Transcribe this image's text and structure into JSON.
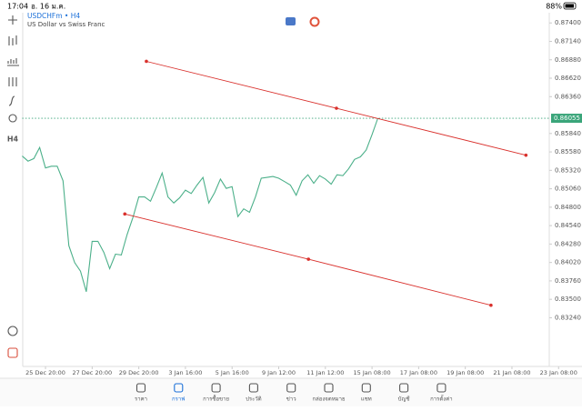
{
  "status_bar": {
    "time": "17:04",
    "date": "อ. 16 ม.ค.",
    "battery": "88%"
  },
  "symbol": {
    "name": "USDCHFm • H4",
    "description": "US Dollar vs Swiss Franc"
  },
  "toolbar": {
    "timeframe": "H4"
  },
  "chart_data": {
    "type": "line",
    "color": "#4cb08a",
    "values": [
      0.85522,
      0.8545,
      0.85486,
      0.85643,
      0.85354,
      0.85378,
      0.85378,
      0.85173,
      0.84258,
      0.84018,
      0.83897,
      0.83608,
      0.84319,
      0.84319,
      0.84162,
      0.83933,
      0.84138,
      0.84126,
      0.84415,
      0.84656,
      0.84945,
      0.84945,
      0.84884,
      0.85077,
      0.85282,
      0.84945,
      0.8486,
      0.84932,
      0.85041,
      0.84993,
      0.85113,
      0.85221,
      0.8486,
      0.85005,
      0.85197,
      0.85065,
      0.85089,
      0.84668,
      0.84776,
      0.84728,
      0.84945,
      0.85209,
      0.85221,
      0.85233,
      0.85209,
      0.85161,
      0.85113,
      0.84969,
      0.85173,
      0.85257,
      0.85137,
      0.85245,
      0.85197,
      0.85125,
      0.85257,
      0.85245,
      0.85342,
      0.85474,
      0.8551,
      0.85607,
      0.85823,
      0.86055
    ],
    "xlim": [
      0,
      90.4
    ],
    "ylim": [
      0.82694,
      0.87544
    ],
    "yticks": [
      {
        "value": 0.874,
        "label": "0.87400"
      },
      {
        "value": 0.8714,
        "label": "0.87140"
      },
      {
        "value": 0.8688,
        "label": "0.86880"
      },
      {
        "value": 0.8662,
        "label": "0.86620"
      },
      {
        "value": 0.8636,
        "label": "0.86360"
      },
      {
        "value": 0.8584,
        "label": "0.85840"
      },
      {
        "value": 0.8558,
        "label": "0.85580"
      },
      {
        "value": 0.8532,
        "label": "0.85320"
      },
      {
        "value": 0.8506,
        "label": "0.85060"
      },
      {
        "value": 0.848,
        "label": "0.84800"
      },
      {
        "value": 0.8454,
        "label": "0.84540"
      },
      {
        "value": 0.8428,
        "label": "0.84280"
      },
      {
        "value": 0.8402,
        "label": "0.84020"
      },
      {
        "value": 0.8376,
        "label": "0.83760"
      },
      {
        "value": 0.835,
        "label": "0.83500"
      },
      {
        "value": 0.8324,
        "label": "0.83240"
      }
    ],
    "xticks": [
      {
        "value": 4,
        "label": "25 Dec 20:00"
      },
      {
        "value": 12,
        "label": "27 Dec 20:00"
      },
      {
        "value": 20,
        "label": "29 Dec 20:00"
      },
      {
        "value": 28,
        "label": "3 Jan 16:00"
      },
      {
        "value": 36,
        "label": "5 Jan 16:00"
      },
      {
        "value": 44,
        "label": "9 Jan 12:00"
      },
      {
        "value": 52,
        "label": "11 Jan 12:00"
      },
      {
        "value": 60,
        "label": "15 Jan 08:00"
      },
      {
        "value": 68,
        "label": "17 Jan 08:00"
      },
      {
        "value": 76,
        "label": "19 Jan 08:00"
      },
      {
        "value": 84,
        "label": "21 Jan 08:00"
      },
      {
        "value": 92,
        "label": "23 Jan 08:00"
      }
    ],
    "current_price": 0.86055,
    "current_price_color": "#3aa57a",
    "trend_lines": [
      {
        "color": "#d9302c",
        "x": [
          21.3,
          53.9,
          86.4
        ],
        "values": [
          0.86858,
          0.86196,
          0.85534
        ]
      },
      {
        "color": "#d9302c",
        "x": [
          17.6,
          49.1,
          80.4
        ],
        "values": [
          0.84704,
          0.84066,
          0.83416
        ]
      }
    ]
  },
  "nav": {
    "active": 1,
    "items": [
      "ราคา",
      "กราฟ",
      "การซื้อขาย",
      "ประวัติ",
      "ข่าว",
      "กล่องจดหมาย",
      "แชท",
      "บัญชี",
      "การตั้งค่า"
    ]
  }
}
